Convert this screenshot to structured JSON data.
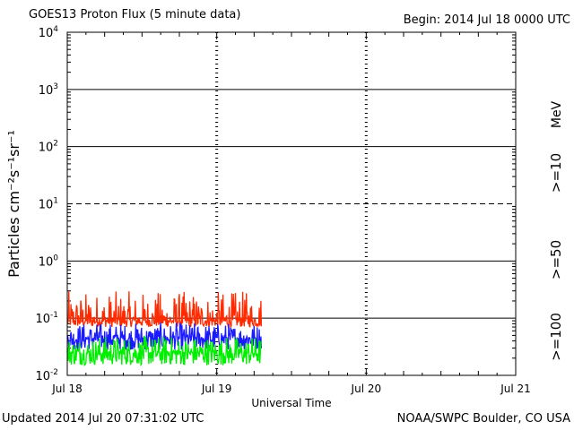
{
  "header": {
    "title": "GOES13 Proton Flux (5 minute data)",
    "begin": "Begin: 2014 Jul 18 0000 UTC"
  },
  "footer": {
    "updated": "Updated 2014 Jul 20 07:31:02 UTC",
    "credit": "NOAA/SWPC Boulder, CO USA"
  },
  "chart_data": {
    "type": "line",
    "title": "GOES13 Proton Flux (5 minute data)",
    "xlabel": "Universal Time",
    "ylabel": "Particles cm⁻²s⁻¹sr⁻¹",
    "yscale": "log",
    "ylim": [
      0.01,
      10000
    ],
    "y_ticks": [
      {
        "base": "10",
        "exp": "4"
      },
      {
        "base": "10",
        "exp": "3"
      },
      {
        "base": "10",
        "exp": "2"
      },
      {
        "base": "10",
        "exp": "1"
      },
      {
        "base": "10",
        "exp": "0"
      },
      {
        "base": "10",
        "exp": "-1"
      },
      {
        "base": "10",
        "exp": "-2"
      }
    ],
    "x_ticks": [
      "Jul 18",
      "Jul 19",
      "Jul 20",
      "Jul 21"
    ],
    "xlim_days": [
      0,
      3
    ],
    "data_end_day": 1.3,
    "threshold_lines": [
      {
        "value": 10,
        "style": "dashed"
      }
    ],
    "unit_label": "MeV",
    "grid": "major decades solid, 10 dashed; dotted day markers",
    "series": [
      {
        "name": ">=10",
        "color": "#ff2a00",
        "baseline": 0.09,
        "noise_low": 0.07,
        "noise_high": 0.3
      },
      {
        "name": ">=50",
        "color": "#1a1aff",
        "baseline": 0.045,
        "noise_low": 0.028,
        "noise_high": 0.085
      },
      {
        "name": ">=100",
        "color": "#00ee00",
        "baseline": 0.025,
        "noise_low": 0.015,
        "noise_high": 0.05
      }
    ]
  }
}
